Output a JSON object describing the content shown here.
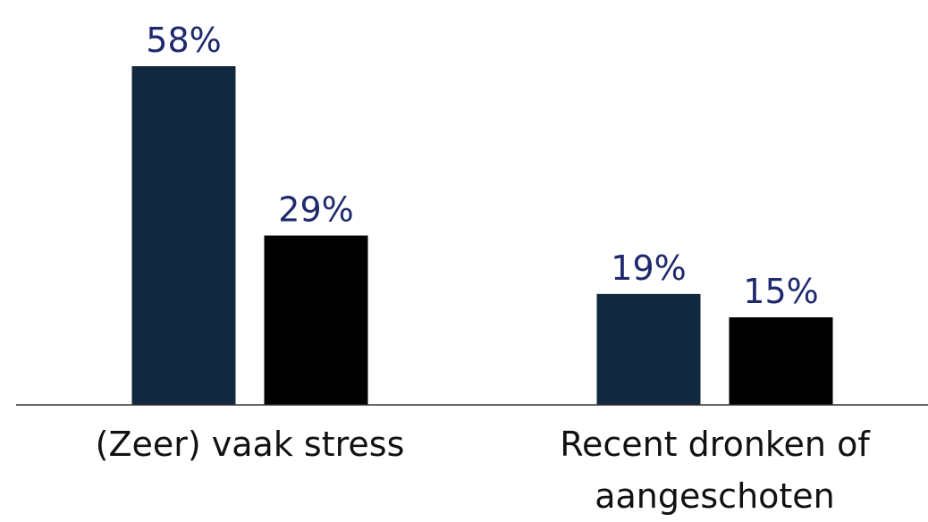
{
  "chart_data": {
    "type": "bar",
    "categories": [
      "(Zeer) vaak stress",
      "Recent dronken of aangeschoten"
    ],
    "series": [
      {
        "color": "#12283f",
        "values": [
          58,
          19
        ],
        "value_labels": [
          "58%",
          "19%"
        ]
      },
      {
        "color": "#000000",
        "values": [
          29,
          15
        ],
        "value_labels": [
          "29%",
          "15%"
        ]
      }
    ],
    "ylim": [
      0,
      60
    ]
  }
}
